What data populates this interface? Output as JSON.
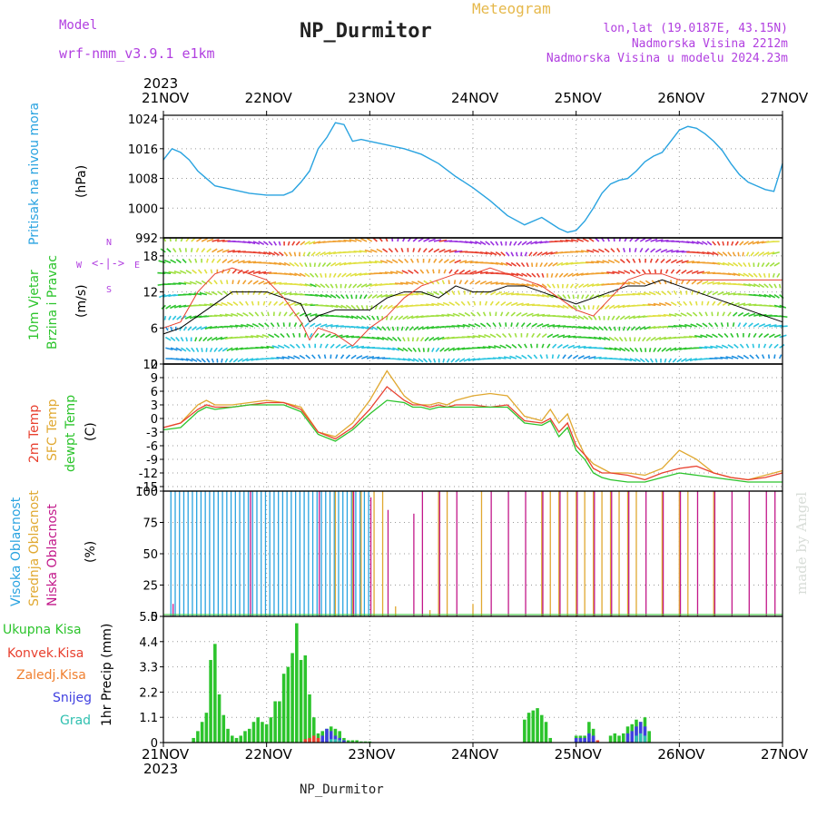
{
  "header": {
    "model_label": "Model",
    "model_name": "wrf-nmm_v3.9.1 e1km",
    "title": "NP_Durmitor",
    "meteogram": "Meteogram",
    "lonlat": "lon,lat (19.0187E, 43.15N)",
    "altitude": "Nadmorska Visina 2212m",
    "model_altitude": "Nadmorska Visina u modelu 2024.23m",
    "year_top": "2023",
    "year_bottom": "2023",
    "footer_name": "NP_Durmitor",
    "watermark": "made by Angel"
  },
  "colors": {
    "pressure": "#29a3e0",
    "temp2m": "#e8402f",
    "sfc": "#e0a830",
    "dew": "#2cc42c",
    "high_cloud": "#29a3e0",
    "mid_cloud": "#e0a830",
    "low_cloud": "#c2188a",
    "precip_total": "#2cc42c",
    "precip_conv": "#e8402f",
    "precip_snow": "#3f3fe0",
    "precip_grad": "#30c0b0"
  },
  "chart_data": [
    {
      "type": "line",
      "panel": "pressure",
      "ylabel": [
        "Pritisak na nivou mora",
        "(hPa)"
      ],
      "x_ticks": [
        "21NOV",
        "22NOV",
        "23NOV",
        "24NOV",
        "25NOV",
        "26NOV",
        "27NOV"
      ],
      "y_ticks": [
        "1024",
        "1016",
        "1008",
        "1000",
        "992"
      ],
      "ylim": [
        992,
        1025
      ],
      "x_range_hours": [
        0,
        144
      ],
      "series": [
        {
          "x": [
            0,
            2,
            4,
            6,
            8,
            10,
            12,
            16,
            20,
            24,
            28,
            30,
            32,
            34,
            36,
            38,
            40,
            42,
            44,
            46,
            48,
            50,
            52,
            54,
            56,
            60,
            64,
            68,
            72,
            76,
            80,
            84,
            88,
            90,
            92,
            94,
            96,
            98,
            100,
            102,
            104,
            106,
            108,
            110,
            112,
            114,
            116,
            118,
            120,
            122,
            124,
            126,
            128,
            130,
            132,
            134,
            136,
            138,
            140,
            142,
            144
          ],
          "y": [
            1013,
            1016,
            1015,
            1013,
            1010,
            1008,
            1006,
            1005,
            1004,
            1003.5,
            1003.5,
            1004.5,
            1007,
            1010,
            1016,
            1019,
            1023,
            1022.5,
            1018,
            1018.5,
            1018,
            1017.5,
            1017,
            1016.5,
            1016,
            1014.5,
            1012,
            1008.5,
            1005.5,
            1002,
            998,
            995.5,
            997.5,
            996,
            994.5,
            993.5,
            994,
            996.5,
            1000,
            1004,
            1006.5,
            1007.5,
            1008,
            1010,
            1012.5,
            1014,
            1015,
            1018,
            1021,
            1022,
            1021.5,
            1020,
            1018,
            1015.5,
            1012,
            1009,
            1007,
            1006,
            1005,
            1004.5,
            1012
          ]
        }
      ]
    },
    {
      "type": "line",
      "panel": "wind",
      "ylabel": [
        "10m Vjetar",
        "Brzina i Pravac",
        "(m/s)"
      ],
      "direction_labels": [
        "N",
        "W",
        "E",
        "S"
      ],
      "y_ticks": [
        "18",
        "12",
        "6",
        "0"
      ],
      "ylim": [
        0,
        21
      ],
      "series": [
        {
          "name": "speed",
          "x": [
            0,
            4,
            8,
            12,
            16,
            20,
            24,
            28,
            32,
            34,
            36,
            40,
            44,
            48,
            52,
            56,
            60,
            64,
            68,
            72,
            76,
            80,
            84,
            88,
            92,
            96,
            100,
            104,
            108,
            112,
            116,
            120,
            124,
            128,
            132,
            136,
            140,
            144
          ],
          "y": [
            5,
            6,
            8,
            10,
            12,
            12,
            12,
            11,
            10,
            7,
            8,
            9,
            9,
            9,
            11,
            12,
            12,
            11,
            13,
            12,
            12,
            13,
            13,
            12,
            11,
            10,
            11,
            12,
            13,
            13,
            14,
            13,
            12,
            11,
            10,
            9,
            8,
            7
          ]
        },
        {
          "name": "gust",
          "x": [
            0,
            4,
            8,
            12,
            16,
            20,
            24,
            28,
            32,
            34,
            36,
            40,
            44,
            48,
            52,
            56,
            60,
            64,
            68,
            72,
            76,
            80,
            84,
            88,
            92,
            96,
            100,
            104,
            108,
            112,
            116,
            120,
            124,
            128,
            132,
            136,
            140,
            144
          ],
          "y": [
            6,
            7,
            12,
            15,
            16,
            15,
            14,
            11,
            7,
            4,
            6,
            5,
            3,
            6,
            8,
            11,
            13,
            14,
            15,
            15,
            16,
            15,
            14,
            13,
            11,
            9,
            8,
            11,
            14,
            15,
            15,
            14,
            14,
            14,
            14,
            14,
            14,
            14
          ]
        }
      ]
    },
    {
      "type": "line",
      "panel": "temperature",
      "ylabel": [
        "2m Temp",
        "SFC Temp",
        "dewpt Temp",
        "(C)"
      ],
      "y_ticks": [
        "12",
        "9",
        "6",
        "3",
        "0",
        "-3",
        "-6",
        "-9",
        "-12",
        "-15"
      ],
      "ylim": [
        -16,
        12
      ],
      "series": [
        {
          "name": "2m Temp",
          "x": [
            0,
            4,
            8,
            10,
            12,
            16,
            20,
            24,
            28,
            32,
            36,
            40,
            44,
            48,
            52,
            56,
            58,
            60,
            62,
            64,
            66,
            68,
            72,
            76,
            80,
            84,
            88,
            90,
            92,
            94,
            96,
            98,
            100,
            102,
            104,
            108,
            112,
            116,
            120,
            124,
            128,
            132,
            136,
            140,
            144
          ],
          "y": [
            -2,
            -1,
            2,
            3,
            2.5,
            2.5,
            3,
            3.5,
            3.5,
            2,
            -3,
            -4.5,
            -2,
            2,
            7,
            4,
            3,
            3,
            2.5,
            3,
            2.5,
            3,
            3,
            2.5,
            3,
            -0.5,
            -1,
            0,
            -3,
            -1,
            -6,
            -8,
            -11,
            -12,
            -12,
            -12.5,
            -13.5,
            -12,
            -11,
            -10.5,
            -12,
            -13,
            -13.5,
            -13,
            -12
          ]
        },
        {
          "name": "SFC Temp",
          "x": [
            0,
            4,
            8,
            10,
            12,
            16,
            20,
            24,
            28,
            32,
            36,
            40,
            44,
            48,
            52,
            56,
            58,
            60,
            62,
            64,
            66,
            68,
            72,
            76,
            80,
            84,
            88,
            90,
            92,
            94,
            96,
            98,
            100,
            102,
            104,
            108,
            112,
            116,
            120,
            124,
            128,
            132,
            136,
            140,
            144
          ],
          "y": [
            -2,
            -1,
            3,
            4,
            3,
            3,
            3.5,
            4,
            3.5,
            2.5,
            -3,
            -4,
            -1,
            4,
            10.5,
            5,
            3.5,
            3,
            3,
            3.5,
            3,
            4,
            5,
            5.5,
            5,
            0.5,
            -0.5,
            2,
            -1,
            1,
            -4,
            -8,
            -10,
            -11,
            -12,
            -12,
            -12.5,
            -11,
            -7,
            -9,
            -12,
            -13,
            -13.5,
            -12.5,
            -11.5
          ]
        },
        {
          "name": "dewpt Temp",
          "x": [
            0,
            4,
            8,
            10,
            12,
            16,
            20,
            24,
            28,
            32,
            36,
            40,
            44,
            48,
            52,
            56,
            58,
            60,
            62,
            64,
            66,
            68,
            72,
            76,
            80,
            84,
            88,
            90,
            92,
            94,
            96,
            98,
            100,
            102,
            104,
            108,
            112,
            116,
            120,
            124,
            128,
            132,
            136,
            140,
            144
          ],
          "y": [
            -2.5,
            -2,
            1.5,
            2.5,
            2,
            2.5,
            3,
            3,
            3,
            1.5,
            -3.5,
            -5,
            -2.5,
            1,
            4,
            3.5,
            2.5,
            2.5,
            2,
            2.5,
            2.5,
            2.5,
            2.5,
            2.5,
            2.5,
            -1,
            -1.5,
            -0.5,
            -4,
            -2,
            -7,
            -9,
            -12,
            -13,
            -13.5,
            -14,
            -14,
            -13,
            -12,
            -12.5,
            -13,
            -13.5,
            -14,
            -14,
            -14
          ]
        }
      ]
    },
    {
      "type": "bar",
      "panel": "cloud",
      "ylabel": [
        "Visoka Oblacnost",
        "Srednja Oblacnost",
        "Niska Oblacnost",
        "(%)"
      ],
      "y_ticks": [
        "100",
        "75",
        "50",
        "25",
        "0"
      ],
      "ylim": [
        0,
        100
      ],
      "series": [
        {
          "name": "Visoka Oblacnost",
          "x": [
            2,
            3,
            4,
            5,
            6,
            7,
            8,
            9,
            10,
            11,
            12,
            13,
            14,
            15,
            16,
            17,
            18,
            19,
            20,
            21,
            22,
            23,
            24,
            25,
            26,
            27,
            28,
            29,
            30,
            31,
            32,
            33,
            34,
            35,
            36,
            37,
            38,
            39,
            40,
            41,
            42,
            43,
            44,
            45,
            46,
            47,
            48
          ],
          "y": [
            100,
            100,
            100,
            100,
            100,
            100,
            100,
            100,
            100,
            100,
            100,
            100,
            100,
            100,
            100,
            100,
            100,
            100,
            100,
            100,
            100,
            100,
            100,
            100,
            100,
            100,
            100,
            100,
            100,
            100,
            100,
            100,
            100,
            100,
            100,
            100,
            100,
            100,
            100,
            100,
            100,
            100,
            100,
            100,
            100,
            100,
            100
          ]
        },
        {
          "name": "Srednja Oblacnost",
          "x": [
            40,
            44,
            46,
            49,
            51,
            54,
            62,
            64,
            66,
            72,
            74,
            88,
            90,
            92,
            94,
            96,
            98,
            100,
            102,
            104,
            106,
            108,
            110,
            116,
            120,
            122,
            128
          ],
          "y": [
            100,
            100,
            100,
            100,
            100,
            8,
            5,
            100,
            100,
            10,
            100,
            100,
            100,
            100,
            100,
            100,
            100,
            100,
            100,
            100,
            100,
            100,
            100,
            100,
            100,
            100,
            100
          ]
        },
        {
          "name": "Niska Oblacnost",
          "x": [
            2,
            20,
            36,
            44,
            48,
            52,
            58,
            60,
            64,
            68,
            76,
            80,
            84,
            88,
            92,
            96,
            100,
            104,
            108,
            112,
            116,
            120,
            124,
            128,
            132,
            136,
            140,
            142
          ],
          "y": [
            10,
            100,
            100,
            100,
            95,
            85,
            82,
            100,
            100,
            100,
            100,
            100,
            100,
            100,
            100,
            100,
            100,
            100,
            100,
            100,
            100,
            100,
            100,
            100,
            100,
            100,
            100,
            100
          ]
        }
      ]
    },
    {
      "type": "bar",
      "panel": "precip",
      "ylabel": [
        "1hr Precip (mm)"
      ],
      "legend": [
        "Ukupna Kisa",
        "Konvek.Kisa",
        "Zaledj.Kisa",
        "Snijeg",
        "Grad"
      ],
      "y_ticks": [
        "5.5",
        "4.4",
        "3.3",
        "2.2",
        "1.1",
        "0"
      ],
      "ylim": [
        0,
        5.5
      ],
      "x_ticks": [
        "21NOV",
        "22NOV",
        "23NOV",
        "24NOV",
        "25NOV",
        "26NOV",
        "27NOV"
      ],
      "series": [
        {
          "name": "Ukupna Kisa",
          "x": [
            7,
            8,
            9,
            10,
            11,
            12,
            13,
            14,
            15,
            16,
            17,
            18,
            19,
            20,
            21,
            22,
            23,
            24,
            25,
            26,
            27,
            28,
            29,
            30,
            31,
            32,
            33,
            34,
            35,
            36,
            37,
            38,
            39,
            40,
            41,
            42,
            43,
            44,
            45,
            46,
            47,
            48,
            84,
            85,
            86,
            87,
            88,
            89,
            90,
            96,
            97,
            98,
            99,
            100,
            104,
            105,
            106,
            107,
            108,
            109,
            110,
            111,
            112,
            113
          ],
          "y": [
            0.2,
            0.5,
            0.9,
            1.3,
            3.6,
            4.3,
            2.1,
            1.2,
            0.6,
            0.3,
            0.2,
            0.3,
            0.5,
            0.6,
            0.9,
            1.1,
            0.9,
            0.8,
            1.1,
            1.8,
            1.8,
            3.0,
            3.3,
            3.9,
            5.2,
            3.6,
            3.8,
            2.1,
            1.1,
            0.4,
            0.5,
            0.6,
            0.7,
            0.6,
            0.5,
            0.2,
            0.1,
            0.1,
            0.1,
            0.05,
            0.05,
            0.05,
            1.0,
            1.3,
            1.4,
            1.5,
            1.2,
            0.9,
            0.2,
            0.3,
            0.3,
            0.3,
            0.9,
            0.6,
            0.3,
            0.4,
            0.3,
            0.4,
            0.7,
            0.8,
            1.0,
            0.9,
            1.1,
            0.5
          ]
        },
        {
          "name": "Konvek.Kisa",
          "x": [
            33,
            34,
            35,
            36,
            37,
            100,
            101,
            110,
            111,
            112
          ],
          "y": [
            0.15,
            0.2,
            0.3,
            0.2,
            0.1,
            0.2,
            0.1,
            0.2,
            0.3,
            0.2
          ]
        },
        {
          "name": "Snijeg",
          "x": [
            37,
            38,
            39,
            40,
            41,
            42,
            96,
            97,
            98,
            99,
            100,
            108,
            109,
            110,
            111,
            112
          ],
          "y": [
            0.3,
            0.6,
            0.5,
            0.3,
            0.2,
            0.1,
            0.2,
            0.2,
            0.2,
            0.4,
            0.3,
            0.4,
            0.5,
            0.7,
            0.9,
            0.7
          ]
        },
        {
          "name": "Grad",
          "x": [
            39,
            40,
            41,
            110,
            111,
            112
          ],
          "y": [
            0.15,
            0.15,
            0.1,
            0.3,
            0.4,
            0.3
          ]
        }
      ]
    }
  ]
}
